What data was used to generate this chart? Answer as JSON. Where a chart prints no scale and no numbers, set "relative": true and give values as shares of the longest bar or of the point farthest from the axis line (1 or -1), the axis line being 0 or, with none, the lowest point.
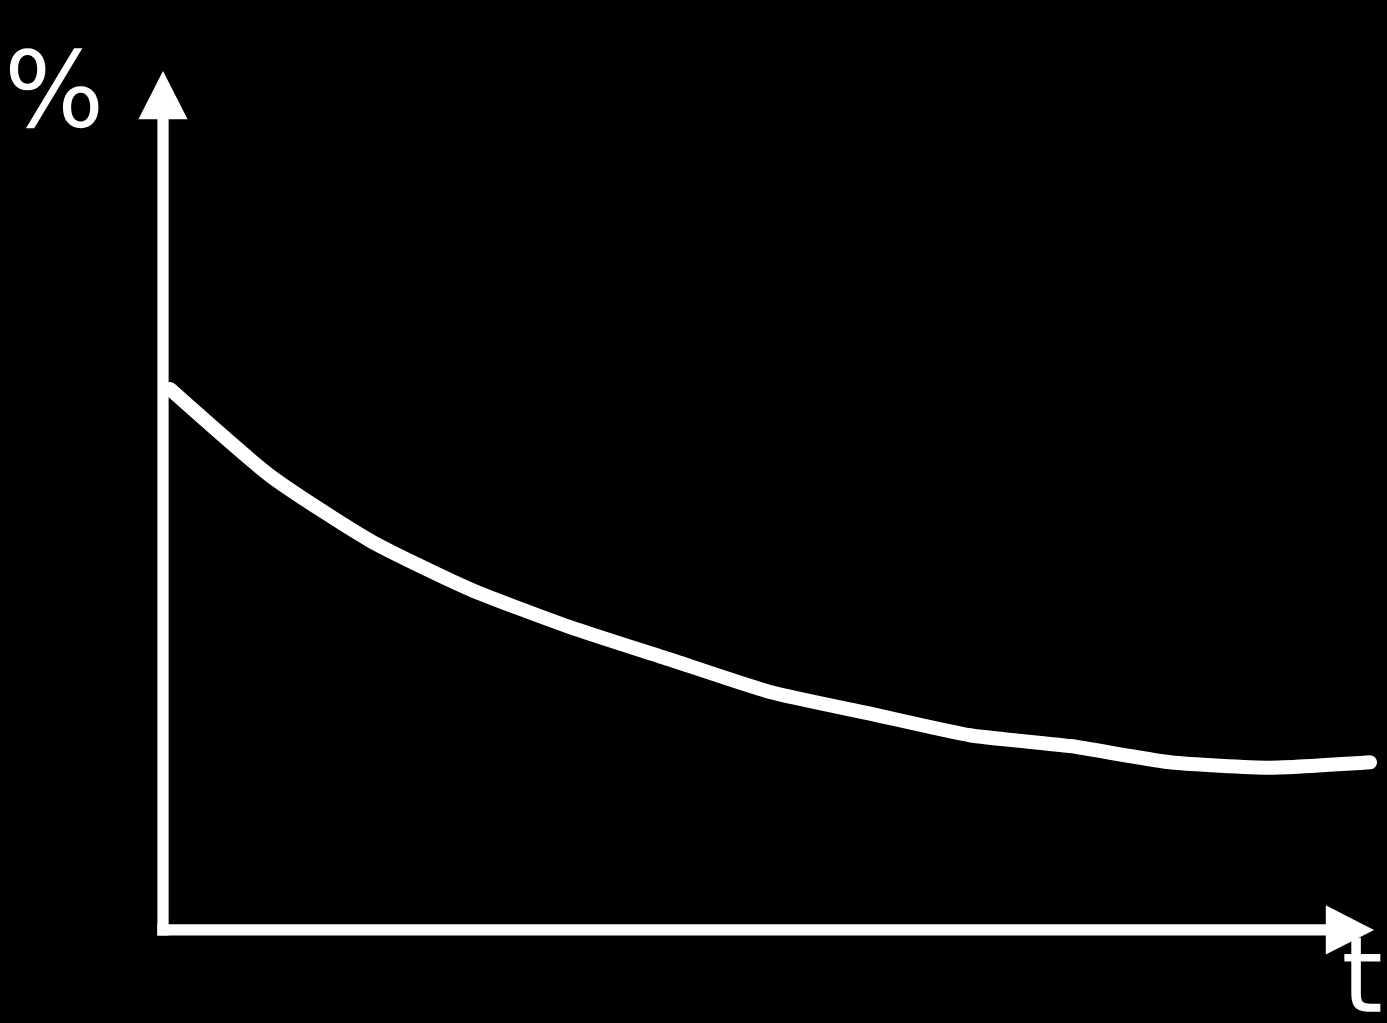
{
  "chart_data": {
    "type": "line",
    "relative": true,
    "xlabel": "t",
    "ylabel": "%",
    "categories": [
      null,
      null,
      null,
      null,
      null,
      null,
      null,
      null,
      null,
      null,
      null,
      null,
      null
    ],
    "series": [
      {
        "color": "#ffffff",
        "values": [
          1.0,
          0.84,
          0.72,
          0.63,
          0.56,
          0.5,
          0.44,
          0.4,
          0.36,
          0.34,
          0.31,
          0.3,
          0.31
        ]
      }
    ],
    "marker": "none",
    "line_style": "solid"
  }
}
